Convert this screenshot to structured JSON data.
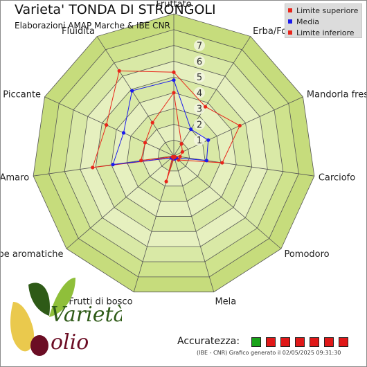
{
  "header": {
    "title": "Varieta' TONDA DI STRONGOLI",
    "subtitle": "Elaborazioni AMAP Marche & IBE CNR"
  },
  "legend": {
    "items": [
      {
        "label": "Limite superiore",
        "color": "#e8251a"
      },
      {
        "label": "Media",
        "color": "#1a1aee"
      },
      {
        "label": "Limite inferiore",
        "color": "#e8251a"
      }
    ]
  },
  "chart_data": {
    "type": "radar",
    "title": "Varieta' TONDA DI STRONGOLI",
    "axes": [
      "Fruttato",
      "Erba/Foglia",
      "Mandorla fresca",
      "Carciofo",
      "Pomodoro",
      "Mela",
      "Frutti di bosco",
      "Erbe aromatiche",
      "Amaro",
      "Piccante",
      "Fluidita"
    ],
    "range": [
      0,
      9
    ],
    "ticks": [
      1,
      2,
      3,
      4,
      5,
      6,
      7
    ],
    "grid": true,
    "series": [
      {
        "name": "Limite superiore",
        "color": "#e8251a",
        "values": [
          5.3,
          3.7,
          4.6,
          3.1,
          0.4,
          0.2,
          0.2,
          0.2,
          5.2,
          4.7,
          6.4
        ]
      },
      {
        "name": "Media",
        "color": "#1a1aee",
        "values": [
          4.8,
          2.0,
          2.4,
          2.1,
          0.2,
          0.2,
          0.2,
          0.2,
          3.9,
          3.5,
          4.9
        ]
      },
      {
        "name": "Limite inferiore",
        "color": "#e8251a",
        "values": [
          4.0,
          0.9,
          0.6,
          0.4,
          0.1,
          0.1,
          1.7,
          0.1,
          2.1,
          2.0,
          2.5
        ]
      }
    ]
  },
  "accuracy": {
    "label": "Accuratezza:",
    "boxes": [
      "#19a319",
      "#e01818",
      "#e01818",
      "#e01818",
      "#e01818",
      "#e01818",
      "#e01818"
    ]
  },
  "footer": {
    "text": "(IBE - CNR) Grafico generato il 02/05/2025 09:31:30"
  },
  "logo": {
    "text": "Varietà olio",
    "colors": {
      "leaf_dark": "#2e5a17",
      "leaf_light": "#8fbf3a",
      "olive": "#6b0d24",
      "gold": "#e8c33a"
    }
  }
}
